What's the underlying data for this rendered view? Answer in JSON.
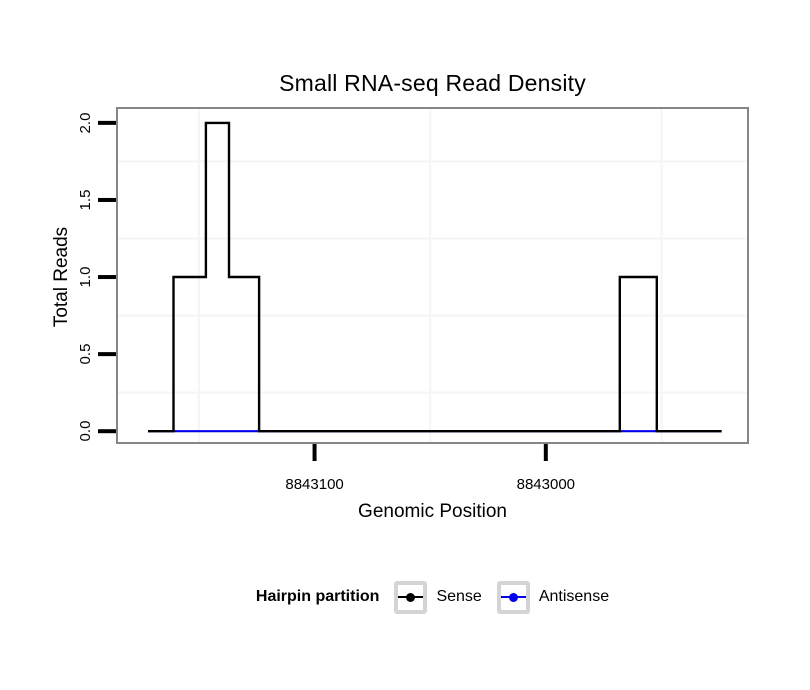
{
  "title": "Small RNA-seq Read Density",
  "chart_data": {
    "type": "line",
    "subtype": "step",
    "title": "Small RNA-seq Read Density",
    "xlabel": "Genomic Position",
    "ylabel": "Total Reads",
    "x_axis_reversed": true,
    "xlim": [
      8843185,
      8842913
    ],
    "ylim": [
      -0.07,
      2.09
    ],
    "x_ticks": [
      {
        "value": 8843100,
        "label": "8843100"
      },
      {
        "value": 8843000,
        "label": "8843000"
      }
    ],
    "y_ticks": [
      {
        "value": 2.0,
        "label": "2.0"
      },
      {
        "value": 1.5,
        "label": "1.5"
      },
      {
        "value": 1.0,
        "label": "1.0"
      },
      {
        "value": 0.5,
        "label": "0.5"
      },
      {
        "value": 0.0,
        "label": "0.0"
      }
    ],
    "x_minor_gridlines": [
      8843150,
      8843050,
      8842950
    ],
    "y_minor_gridlines": [
      1.75,
      1.25,
      0.75,
      0.25
    ],
    "grid": "minor-only",
    "legend_title": "Hairpin partition",
    "legend_position": "bottom",
    "series": [
      {
        "name": "Sense",
        "color": "#000000",
        "points": [
          [
            8843172,
            0
          ],
          [
            8843161,
            0
          ],
          [
            8843161,
            1
          ],
          [
            8843147,
            1
          ],
          [
            8843147,
            2
          ],
          [
            8843137,
            2
          ],
          [
            8843137,
            1
          ],
          [
            8843124,
            1
          ],
          [
            8843124,
            0
          ],
          [
            8842968,
            0
          ],
          [
            8842968,
            1
          ],
          [
            8842952,
            1
          ],
          [
            8842952,
            0
          ],
          [
            8842924,
            0
          ]
        ]
      },
      {
        "name": "Antisense",
        "color": "#0000ee",
        "points": [
          [
            8843172,
            0
          ],
          [
            8842924,
            0
          ]
        ]
      }
    ]
  },
  "colors": {
    "panel_border": "#868686",
    "grid_minor": "#f5f5f5",
    "tick": "#000000",
    "legend_key_border": "#d4d4d4"
  }
}
